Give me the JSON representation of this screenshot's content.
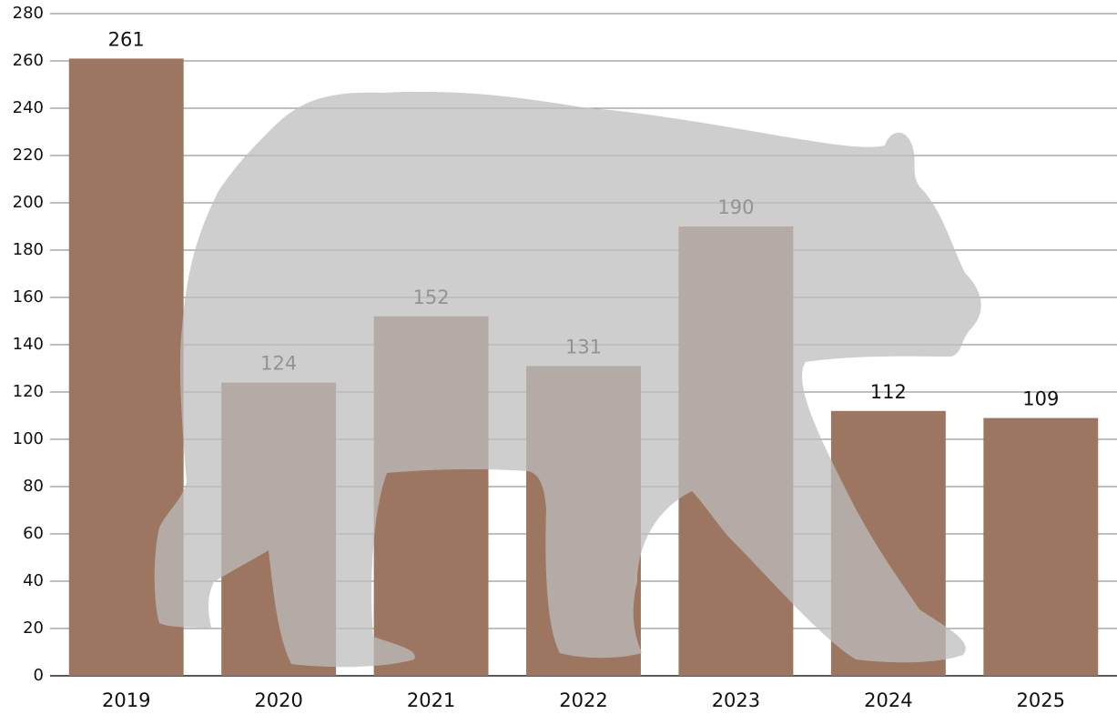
{
  "chart_data": {
    "type": "bar",
    "categories": [
      "2019",
      "2020",
      "2021",
      "2022",
      "2023",
      "2024",
      "2025"
    ],
    "values": [
      261,
      124,
      152,
      131,
      190,
      112,
      109
    ],
    "color": "#9c7660",
    "ylim": [
      0,
      280
    ],
    "yticks": [
      0,
      20,
      40,
      60,
      80,
      100,
      120,
      140,
      160,
      180,
      200,
      220,
      240,
      260,
      280
    ],
    "grid": true
  }
}
